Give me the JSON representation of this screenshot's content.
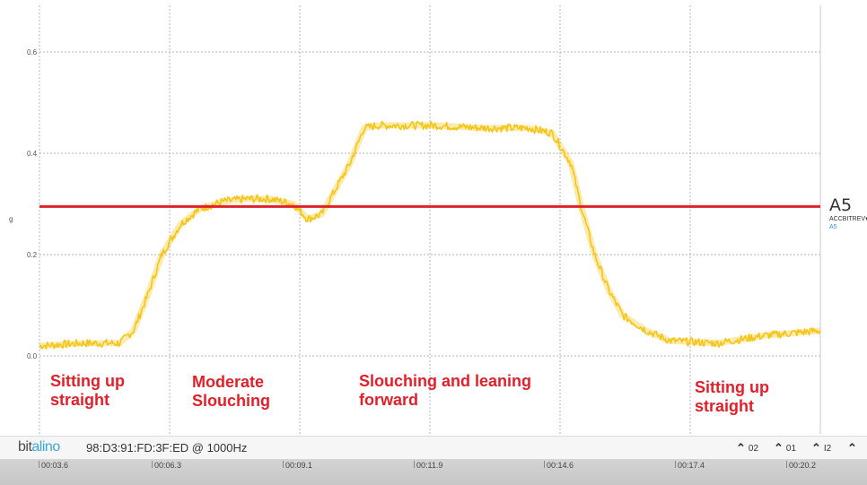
{
  "channel": {
    "name": "A5",
    "sensor": "ACCBITREV",
    "sub": "A5",
    "unit": "g"
  },
  "annotations": [
    {
      "lines": [
        "Sitting up",
        "straight"
      ]
    },
    {
      "lines": [
        "Moderate",
        "Slouching"
      ]
    },
    {
      "lines": [
        "Slouching and leaning",
        "forward"
      ]
    },
    {
      "lines": [
        "Sitting up",
        "straight"
      ]
    }
  ],
  "footer": {
    "logo_left": "bit",
    "logo_right": "alino",
    "device": "98:D3:91:FD:3F:ED @ 1000Hz",
    "channel_buttons": [
      {
        "label": "02",
        "icon": "chevron-up-icon"
      },
      {
        "label": "01",
        "icon": "chevron-up-icon"
      },
      {
        "label": "I2",
        "icon": "chevron-up-icon"
      },
      {
        "label": "",
        "icon": "chevron-up-icon"
      }
    ]
  },
  "chart_data": {
    "type": "line",
    "ylabel": "g",
    "ylim": [
      0.0,
      0.6
    ],
    "yticks": [
      "0.0",
      "0.2",
      "0.4",
      "0.6"
    ],
    "xlim_seconds": [
      3.6,
      20.2
    ],
    "xticks": [
      "00:03.6",
      "00:06.3",
      "00:09.1",
      "00:11.9",
      "00:14.6",
      "00:17.4",
      "00:20.2"
    ],
    "threshold": {
      "value": 0.295,
      "color": "#e0202a"
    },
    "signal_color": "#f5c518",
    "grid": true,
    "series": [
      {
        "name": "A5",
        "x": [
          3.6,
          4.5,
          5.3,
          5.6,
          5.9,
          6.2,
          6.6,
          7.0,
          7.5,
          8.0,
          8.5,
          9.0,
          9.3,
          9.6,
          9.9,
          10.2,
          10.5,
          10.8,
          11.5,
          12.0,
          13.0,
          14.0,
          14.5,
          14.9,
          15.1,
          15.4,
          15.7,
          16.0,
          16.5,
          17.0,
          18.0,
          19.0,
          20.2
        ],
        "y": [
          0.02,
          0.025,
          0.025,
          0.05,
          0.12,
          0.2,
          0.26,
          0.29,
          0.305,
          0.31,
          0.31,
          0.3,
          0.27,
          0.28,
          0.33,
          0.38,
          0.45,
          0.455,
          0.455,
          0.455,
          0.45,
          0.45,
          0.44,
          0.38,
          0.3,
          0.2,
          0.13,
          0.08,
          0.05,
          0.03,
          0.025,
          0.04,
          0.05
        ]
      }
    ]
  }
}
